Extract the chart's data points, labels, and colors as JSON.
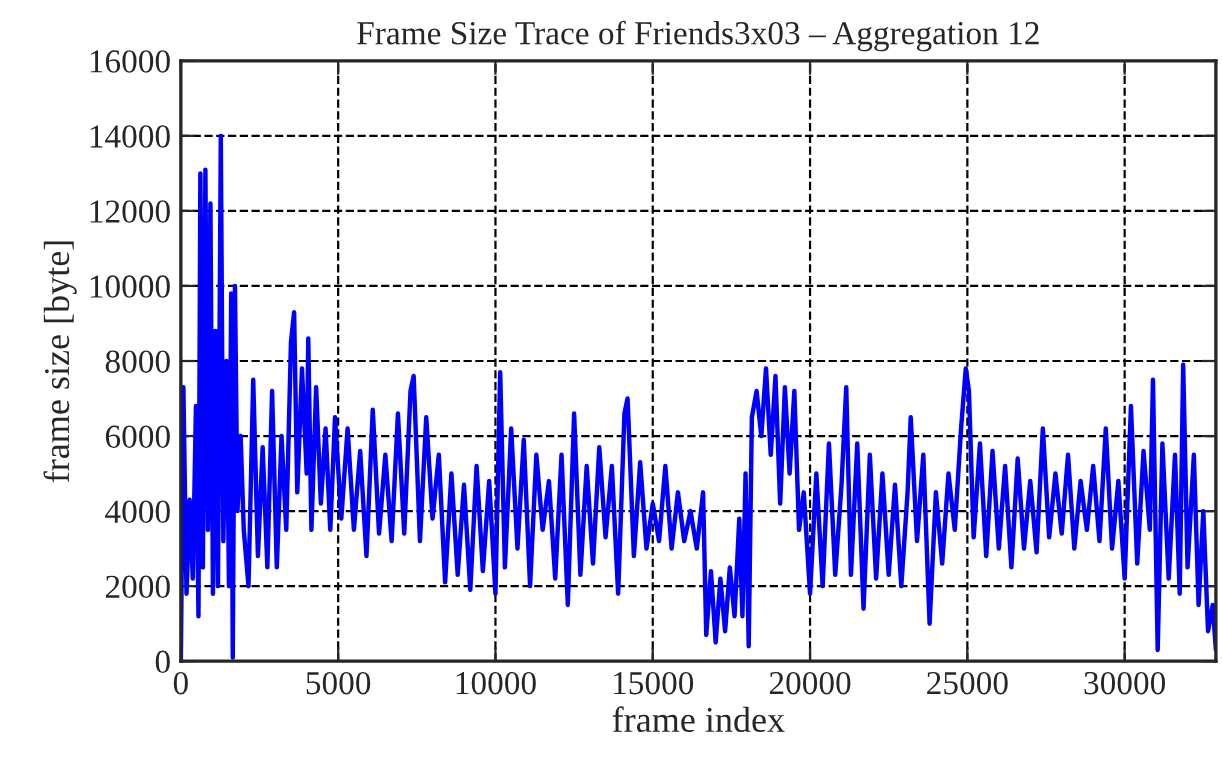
{
  "chart_data": {
    "type": "line",
    "title": "Frame Size Trace of Friends3x03 – Aggregation 12",
    "xlabel": "frame index",
    "ylabel": "frame size [byte]",
    "xlim": [
      0,
      32900
    ],
    "xticks": [
      0,
      5000,
      10000,
      15000,
      20000,
      25000,
      30000
    ],
    "ylim": [
      0,
      16000
    ],
    "yticks": [
      0,
      2000,
      4000,
      6000,
      8000,
      10000,
      12000,
      14000,
      16000
    ],
    "grid": true,
    "marker": "none",
    "series": [
      {
        "color": "#0000ff",
        "x": [
          0,
          80,
          180,
          280,
          380,
          480,
          560,
          620,
          700,
          780,
          860,
          940,
          1020,
          1100,
          1180,
          1270,
          1350,
          1450,
          1530,
          1600,
          1650,
          1720,
          1800,
          1900,
          2000,
          2150,
          2300,
          2450,
          2600,
          2750,
          2900,
          3050,
          3200,
          3350,
          3500,
          3600,
          3700,
          3850,
          4000,
          4050,
          4150,
          4300,
          4450,
          4600,
          4750,
          4900,
          5100,
          5300,
          5500,
          5700,
          5900,
          6100,
          6300,
          6500,
          6700,
          6900,
          7100,
          7300,
          7400,
          7600,
          7800,
          8000,
          8200,
          8400,
          8600,
          8800,
          9000,
          9200,
          9400,
          9600,
          9800,
          10000,
          10150,
          10300,
          10500,
          10700,
          10900,
          11100,
          11300,
          11500,
          11700,
          11900,
          12100,
          12300,
          12500,
          12700,
          12900,
          13100,
          13300,
          13500,
          13700,
          13900,
          14100,
          14200,
          14400,
          14600,
          14800,
          15000,
          15200,
          15400,
          15600,
          15800,
          16000,
          16200,
          16400,
          16600,
          16700,
          16850,
          17000,
          17150,
          17300,
          17450,
          17600,
          17750,
          17850,
          17950,
          18050,
          18150,
          18300,
          18450,
          18600,
          18750,
          18900,
          19050,
          19200,
          19350,
          19500,
          19650,
          19800,
          20000,
          20200,
          20400,
          20600,
          20800,
          21000,
          21150,
          21300,
          21500,
          21700,
          21900,
          22100,
          22300,
          22500,
          22700,
          22900,
          23100,
          23200,
          23400,
          23600,
          23800,
          24000,
          24200,
          24400,
          24600,
          24800,
          24950,
          25050,
          25200,
          25400,
          25600,
          25800,
          26000,
          26200,
          26400,
          26600,
          26800,
          27000,
          27200,
          27400,
          27600,
          27800,
          28000,
          28200,
          28400,
          28600,
          28800,
          29000,
          29200,
          29400,
          29600,
          29800,
          30000,
          30200,
          30400,
          30600,
          30800,
          30900,
          31050,
          31200,
          31400,
          31600,
          31750,
          31860,
          32000,
          32200,
          32350,
          32500,
          32650,
          32800,
          32900
        ],
        "values": [
          0,
          7300,
          1800,
          4300,
          2200,
          6800,
          1200,
          13000,
          2500,
          13100,
          3500,
          12200,
          1800,
          8800,
          2000,
          14000,
          3200,
          8000,
          2000,
          9800,
          100,
          10000,
          4000,
          6000,
          3500,
          2000,
          7500,
          2800,
          5700,
          2500,
          7200,
          2500,
          6000,
          3500,
          8500,
          9300,
          4500,
          7800,
          5000,
          8600,
          3500,
          7300,
          4200,
          6200,
          3500,
          6500,
          3800,
          6200,
          3500,
          5600,
          2800,
          6700,
          3400,
          5500,
          3200,
          6600,
          3400,
          7200,
          7600,
          3200,
          6500,
          3800,
          5500,
          2100,
          5000,
          2300,
          4700,
          1900,
          5200,
          2400,
          4800,
          1800,
          7700,
          2500,
          6200,
          3000,
          5900,
          2000,
          5500,
          3500,
          4800,
          2200,
          5500,
          1500,
          6600,
          2300,
          5200,
          2600,
          5700,
          3300,
          5200,
          1800,
          6600,
          7000,
          2800,
          5300,
          3000,
          4200,
          3200,
          5200,
          3000,
          4500,
          3200,
          4000,
          3000,
          4500,
          700,
          2400,
          500,
          2200,
          800,
          2500,
          1200,
          3800,
          1200,
          5000,
          400,
          6500,
          7200,
          6000,
          7800,
          5500,
          7600,
          4200,
          7300,
          5000,
          7200,
          3500,
          4500,
          1800,
          5000,
          2000,
          5800,
          2300,
          4700,
          7300,
          2300,
          5800,
          1400,
          5500,
          2200,
          5000,
          2300,
          4700,
          2000,
          4500,
          6500,
          3200,
          5500,
          1000,
          4500,
          2600,
          5000,
          3500,
          6200,
          7800,
          7200,
          3300,
          5800,
          2800,
          5600,
          3000,
          5200,
          2500,
          5400,
          3000,
          4800,
          2900,
          6200,
          3300,
          5000,
          3400,
          5500,
          3000,
          4800,
          3500,
          5200,
          3200,
          6200,
          3000,
          4800,
          2200,
          6800,
          2600,
          5600,
          3500,
          7500,
          300,
          5800,
          2200,
          5500,
          1800,
          7900,
          2500,
          5500,
          1500,
          4000,
          800,
          1500,
          300
        ]
      }
    ]
  }
}
